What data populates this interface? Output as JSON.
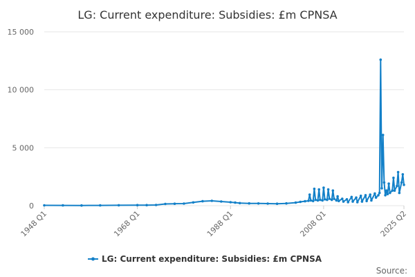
{
  "chart_data": {
    "type": "line",
    "title": "LG: Current expenditure: Subsidies: £m CPNSA",
    "xlabel": "",
    "ylabel": "",
    "ylim": [
      0,
      15000
    ],
    "y_ticks": [
      0,
      5000,
      10000,
      15000
    ],
    "y_tick_labels": [
      "0",
      "5 000",
      "10 000",
      "15 000"
    ],
    "x_range": [
      "1948 Q1",
      "2025 Q2"
    ],
    "x_ticks": [
      "1948 Q1",
      "1968 Q1",
      "1988 Q1",
      "2008 Q1",
      "2025 Q2"
    ],
    "grid": true,
    "legend_position": "bottom",
    "series": [
      {
        "name": "LG: Current expenditure: Subsidies: £m CPNSA",
        "color": "#1380c8",
        "points": [
          [
            "1948 Q1",
            30
          ],
          [
            "1952 Q1",
            25
          ],
          [
            "1956 Q1",
            20
          ],
          [
            "1960 Q1",
            25
          ],
          [
            "1964 Q1",
            35
          ],
          [
            "1968 Q1",
            45
          ],
          [
            "1970 Q1",
            50
          ],
          [
            "1972 Q1",
            60
          ],
          [
            "1974 Q1",
            150
          ],
          [
            "1976 Q1",
            170
          ],
          [
            "1978 Q1",
            180
          ],
          [
            "1980 Q1",
            280
          ],
          [
            "1982 Q1",
            380
          ],
          [
            "1984 Q1",
            420
          ],
          [
            "1986 Q1",
            360
          ],
          [
            "1988 Q1",
            300
          ],
          [
            "1989 Q1",
            260
          ],
          [
            "1990 Q1",
            220
          ],
          [
            "1992 Q1",
            200
          ],
          [
            "1994 Q1",
            190
          ],
          [
            "1996 Q1",
            180
          ],
          [
            "1998 Q1",
            170
          ],
          [
            "2000 Q1",
            200
          ],
          [
            "2002 Q1",
            260
          ],
          [
            "2003 Q1",
            330
          ],
          [
            "2004 Q1",
            380
          ],
          [
            "2004 Q4",
            420
          ],
          [
            "2005 Q1",
            950
          ],
          [
            "2005 Q2",
            450
          ],
          [
            "2005 Q4",
            400
          ],
          [
            "2006 Q1",
            1450
          ],
          [
            "2006 Q2",
            500
          ],
          [
            "2006 Q4",
            450
          ],
          [
            "2007 Q1",
            1400
          ],
          [
            "2007 Q2",
            500
          ],
          [
            "2007 Q4",
            450
          ],
          [
            "2008 Q1",
            1550
          ],
          [
            "2008 Q2",
            550
          ],
          [
            "2008 Q4",
            500
          ],
          [
            "2009 Q1",
            1400
          ],
          [
            "2009 Q2",
            600
          ],
          [
            "2009 Q4",
            500
          ],
          [
            "2010 Q1",
            1300
          ],
          [
            "2010 Q2",
            600
          ],
          [
            "2010 Q4",
            450
          ],
          [
            "2011 Q1",
            800
          ],
          [
            "2011 Q2",
            400
          ],
          [
            "2012 Q1",
            600
          ],
          [
            "2012 Q2",
            350
          ],
          [
            "2013 Q1",
            550
          ],
          [
            "2013 Q2",
            300
          ],
          [
            "2014 Q1",
            750
          ],
          [
            "2014 Q2",
            350
          ],
          [
            "2015 Q1",
            700
          ],
          [
            "2015 Q2",
            300
          ],
          [
            "2016 Q1",
            850
          ],
          [
            "2016 Q2",
            350
          ],
          [
            "2017 Q1",
            900
          ],
          [
            "2017 Q2",
            400
          ],
          [
            "2018 Q1",
            950
          ],
          [
            "2018 Q2",
            450
          ],
          [
            "2019 Q1",
            1050
          ],
          [
            "2019 Q2",
            700
          ],
          [
            "2019 Q4",
            900
          ],
          [
            "2020 Q1",
            1100
          ],
          [
            "2020 Q2",
            12600
          ],
          [
            "2020 Q3",
            1500
          ],
          [
            "2020 Q4",
            6100
          ],
          [
            "2021 Q1",
            2000
          ],
          [
            "2021 Q2",
            900
          ],
          [
            "2021 Q3",
            1300
          ],
          [
            "2021 Q4",
            1000
          ],
          [
            "2022 Q1",
            1900
          ],
          [
            "2022 Q2",
            1100
          ],
          [
            "2022 Q4",
            1300
          ],
          [
            "2023 Q1",
            2400
          ],
          [
            "2023 Q2",
            1300
          ],
          [
            "2023 Q4",
            1700
          ],
          [
            "2024 Q1",
            2900
          ],
          [
            "2024 Q2",
            1100
          ],
          [
            "2024 Q4",
            2000
          ],
          [
            "2025 Q1",
            2700
          ],
          [
            "2025 Q2",
            1800
          ]
        ]
      }
    ],
    "source_label": "Source:"
  }
}
